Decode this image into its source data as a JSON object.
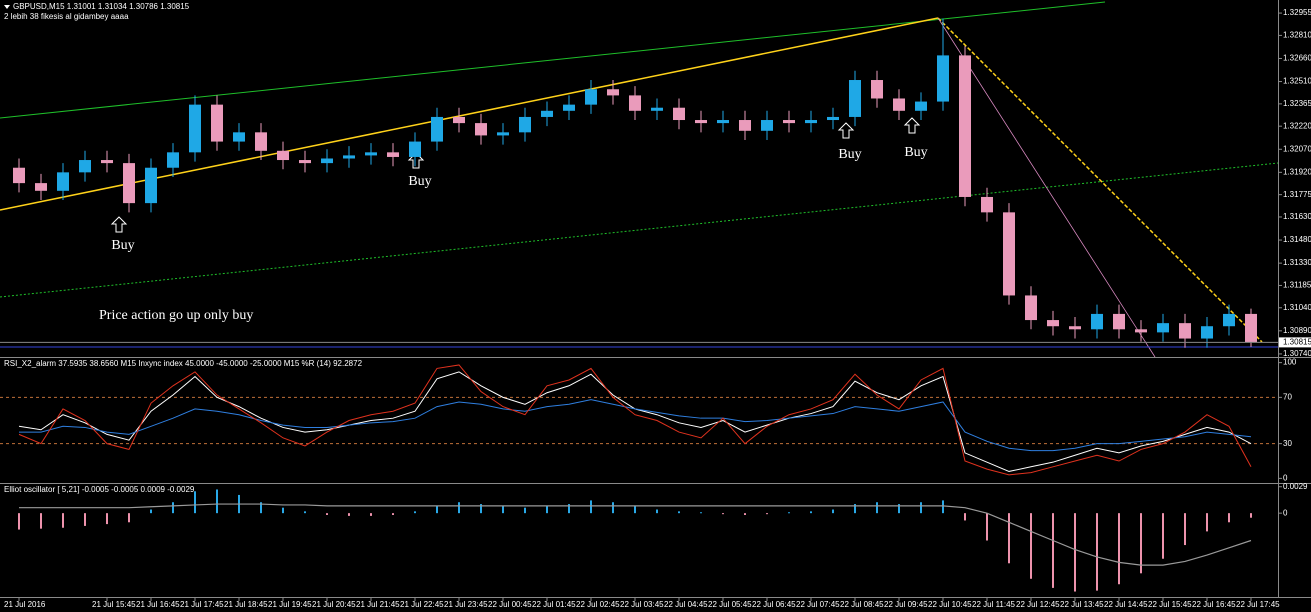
{
  "header": {
    "symbol_line": "GBPUSD,M15  1.31001 1.31034 1.30786 1.30815",
    "subtitle": "2 lebih 38 fikesis al gidambey aaaa"
  },
  "annotations": {
    "buy_labels": [
      "Buy",
      "Buy",
      "Buy",
      "Buy"
    ],
    "note": "Price action go up only buy"
  },
  "chart_data": [
    {
      "type": "candlestick",
      "categories": [
        "21 Jul 2016",
        null,
        null,
        null,
        "21 Jul 15:45",
        null,
        "21 Jul 16:45",
        null,
        "21 Jul 17:45",
        null,
        "21 Jul 18:45",
        null,
        "21 Jul 19:45",
        null,
        "21 Jul 20:45",
        null,
        "21 Jul 21:45",
        null,
        "21 Jul 22:45",
        null,
        "21 Jul 23:45",
        null,
        "22 Jul 00:45",
        null,
        "22 Jul 01:45",
        null,
        "22 Jul 02:45",
        null,
        "22 Jul 03:45",
        null,
        "22 Jul 04:45",
        null,
        "22 Jul 05:45",
        null,
        "22 Jul 06:45",
        null,
        "22 Jul 07:45",
        null,
        "22 Jul 08:45",
        null,
        "22 Jul 09:45",
        null,
        "22 Jul 10:45",
        null,
        "22 Jul 11:45",
        null,
        "22 Jul 12:45",
        null,
        "22 Jul 13:45",
        null,
        "22 Jul 14:45",
        null,
        "22 Jul 15:45",
        null,
        "22 Jul 16:45",
        null,
        "22 Jul 17:45"
      ],
      "open": [
        1.3195,
        1.3185,
        1.318,
        1.3192,
        1.32,
        1.3198,
        1.3172,
        1.3195,
        1.3205,
        1.3236,
        1.3212,
        1.3218,
        1.3206,
        1.32,
        1.3198,
        1.3201,
        1.3203,
        1.3205,
        1.3202,
        1.3212,
        1.3228,
        1.3224,
        1.3216,
        1.3218,
        1.3228,
        1.3232,
        1.3236,
        1.3246,
        1.3242,
        1.3232,
        1.3234,
        1.3226,
        1.3224,
        1.3226,
        1.3219,
        1.3226,
        1.3224,
        1.3226,
        1.3228,
        1.3252,
        1.324,
        1.3232,
        1.3238,
        1.3268,
        1.3176,
        1.3166,
        1.3112,
        1.3096,
        1.3092,
        1.309,
        1.31,
        1.309,
        1.3088,
        1.3094,
        1.3084,
        1.3092,
        1.31
      ],
      "high": [
        1.3201,
        1.3191,
        1.3198,
        1.3206,
        1.3206,
        1.3204,
        1.3201,
        1.3211,
        1.3242,
        1.3242,
        1.3224,
        1.3224,
        1.3212,
        1.3206,
        1.3207,
        1.3209,
        1.3211,
        1.3211,
        1.3218,
        1.3234,
        1.3234,
        1.323,
        1.3224,
        1.3234,
        1.3238,
        1.3242,
        1.3252,
        1.3252,
        1.3248,
        1.324,
        1.324,
        1.3232,
        1.3232,
        1.3232,
        1.3232,
        1.3232,
        1.3232,
        1.3234,
        1.3258,
        1.3258,
        1.3246,
        1.3244,
        1.3292,
        1.3274,
        1.3182,
        1.3172,
        1.3118,
        1.3102,
        1.3098,
        1.3106,
        1.3106,
        1.3096,
        1.31,
        1.31,
        1.3098,
        1.3106,
        1.31034
      ],
      "low": [
        1.3179,
        1.3174,
        1.3174,
        1.3186,
        1.3192,
        1.3166,
        1.3166,
        1.3189,
        1.3199,
        1.3206,
        1.3206,
        1.32,
        1.3194,
        1.3192,
        1.3192,
        1.3195,
        1.3197,
        1.3196,
        1.3196,
        1.3206,
        1.3218,
        1.321,
        1.321,
        1.3212,
        1.3222,
        1.3226,
        1.323,
        1.3236,
        1.3226,
        1.3226,
        1.322,
        1.3218,
        1.3218,
        1.3213,
        1.3213,
        1.3218,
        1.3218,
        1.322,
        1.3222,
        1.3234,
        1.3226,
        1.3226,
        1.3232,
        1.317,
        1.316,
        1.3106,
        1.309,
        1.3086,
        1.3084,
        1.3084,
        1.3084,
        1.3082,
        1.3082,
        1.3078,
        1.3078,
        1.3086,
        1.30786
      ],
      "close": [
        1.3185,
        1.318,
        1.3192,
        1.32,
        1.3198,
        1.3172,
        1.3195,
        1.3205,
        1.3236,
        1.3212,
        1.3218,
        1.3206,
        1.32,
        1.3198,
        1.3201,
        1.3203,
        1.3205,
        1.3202,
        1.3212,
        1.3228,
        1.3224,
        1.3216,
        1.3218,
        1.3228,
        1.3232,
        1.3236,
        1.3246,
        1.3242,
        1.3232,
        1.3234,
        1.3226,
        1.3224,
        1.3226,
        1.3219,
        1.3226,
        1.3224,
        1.3226,
        1.3228,
        1.3252,
        1.324,
        1.3232,
        1.3238,
        1.3268,
        1.3176,
        1.3166,
        1.3112,
        1.3096,
        1.3092,
        1.309,
        1.31,
        1.309,
        1.3088,
        1.3094,
        1.3084,
        1.3092,
        1.31,
        1.30815
      ],
      "up_color": "#1fa8e6",
      "down_color": "#ea9bbb",
      "last_price": 1.30815,
      "ylim": [
        1.3072,
        1.3304
      ],
      "yticks": [
        {
          "value": 1.32955,
          "label": "1.32955"
        },
        {
          "value": 1.3281,
          "label": "1.32810"
        },
        {
          "value": 1.3266,
          "label": "1.32660"
        },
        {
          "value": 1.3251,
          "label": "1.32510"
        },
        {
          "value": 1.32365,
          "label": "1.32365"
        },
        {
          "value": 1.3222,
          "label": "1.32220"
        },
        {
          "value": 1.3207,
          "label": "1.32070"
        },
        {
          "value": 1.3192,
          "label": "1.31920"
        },
        {
          "value": 1.31775,
          "label": "1.31775"
        },
        {
          "value": 1.3163,
          "label": "1.31630"
        },
        {
          "value": 1.3148,
          "label": "1.31480"
        },
        {
          "value": 1.3133,
          "label": "1.31330"
        },
        {
          "value": 1.31185,
          "label": "1.31185"
        },
        {
          "value": 1.3104,
          "label": "1.31040"
        },
        {
          "value": 1.3089,
          "label": "1.30890"
        },
        {
          "value": 1.3074,
          "label": "1.30740"
        }
      ]
    },
    {
      "type": "line",
      "title": "RSI_X2_alarm 37.5935 38.6560 M15 Inxync index 45.0000 -45.0000 -25.0000 M15 %R (14) 92.2872",
      "series": [
        {
          "color": "#ffffff",
          "values": [
            45,
            42,
            55,
            48,
            38,
            33,
            58,
            72,
            88,
            70,
            62,
            52,
            44,
            40,
            42,
            46,
            50,
            52,
            58,
            86,
            92,
            80,
            70,
            64,
            74,
            80,
            90,
            72,
            60,
            55,
            48,
            44,
            50,
            40,
            46,
            52,
            56,
            62,
            84,
            74,
            68,
            80,
            88,
            22,
            14,
            6,
            10,
            14,
            20,
            26,
            22,
            28,
            32,
            38,
            44,
            40,
            30
          ]
        },
        {
          "color": "#2f7fe0",
          "values": [
            40,
            40,
            45,
            44,
            40,
            38,
            45,
            52,
            60,
            58,
            55,
            50,
            46,
            44,
            44,
            46,
            48,
            49,
            52,
            62,
            66,
            64,
            60,
            58,
            62,
            64,
            68,
            64,
            60,
            57,
            54,
            52,
            52,
            49,
            50,
            52,
            54,
            56,
            62,
            60,
            58,
            62,
            66,
            40,
            32,
            26,
            24,
            24,
            26,
            30,
            30,
            32,
            34,
            36,
            40,
            38,
            36
          ]
        },
        {
          "color": "#e0321e",
          "values": [
            38,
            30,
            60,
            50,
            30,
            25,
            65,
            80,
            92,
            72,
            60,
            48,
            35,
            28,
            40,
            50,
            55,
            58,
            65,
            95,
            98,
            75,
            62,
            55,
            80,
            85,
            95,
            70,
            55,
            50,
            40,
            35,
            52,
            30,
            45,
            55,
            60,
            68,
            90,
            72,
            60,
            85,
            95,
            15,
            8,
            3,
            5,
            10,
            15,
            20,
            15,
            25,
            30,
            40,
            55,
            45,
            10
          ]
        }
      ],
      "ylim": [
        -4,
        104
      ],
      "yticks": [
        100,
        70,
        30,
        0
      ]
    },
    {
      "type": "histogram-line",
      "title": "Elliot oscillator [ 5,21] -0.0005 -0.0005 0.0009 -0.0029",
      "values": [
        -0.0018,
        -0.0017,
        -0.0016,
        -0.0014,
        -0.0012,
        -0.001,
        0.0004,
        0.0012,
        0.0024,
        0.0026,
        0.002,
        0.0012,
        0.0006,
        0.0002,
        -0.0002,
        -0.0003,
        -0.0003,
        -0.0002,
        0.0002,
        0.0008,
        0.0012,
        0.001,
        0.0008,
        0.0006,
        0.0008,
        0.001,
        0.0014,
        0.0012,
        0.0008,
        0.0004,
        0.0002,
        0.0001,
        -0.0001,
        -0.0002,
        -0.0001,
        0.0001,
        0.0002,
        0.0004,
        0.001,
        0.0012,
        0.001,
        0.0012,
        0.0014,
        -0.0008,
        -0.003,
        -0.0055,
        -0.0072,
        -0.0082,
        -0.0086,
        -0.0085,
        -0.0078,
        -0.0066,
        -0.005,
        -0.0035,
        -0.002,
        -0.001,
        -0.0005
      ],
      "signal": [
        0.0006,
        0.0006,
        0.0006,
        0.0006,
        0.0006,
        0.0006,
        0.0007,
        0.0008,
        0.0009,
        0.001,
        0.001,
        0.001,
        0.0009,
        0.0009,
        0.0008,
        0.0008,
        0.0008,
        0.0008,
        0.0008,
        0.0008,
        0.0008,
        0.0008,
        0.0008,
        0.0008,
        0.0008,
        0.0008,
        0.0008,
        0.0008,
        0.0008,
        0.0008,
        0.0008,
        0.0008,
        0.0008,
        0.0008,
        0.0008,
        0.0008,
        0.0008,
        0.0008,
        0.0008,
        0.0008,
        0.0008,
        0.0008,
        0.0008,
        0.0006,
        0.0,
        -0.001,
        -0.002,
        -0.003,
        -0.004,
        -0.0048,
        -0.0054,
        -0.0057,
        -0.0057,
        -0.0053,
        -0.0046,
        -0.0038,
        -0.003
      ],
      "pos_color": "#29a9e8",
      "neg_color": "#ee93ad",
      "signal_color": "#9a9a9a",
      "ylim": [
        -0.0092,
        0.0032
      ],
      "yticks": [
        {
          "value": 0.0029,
          "label": "0.0029"
        },
        0
      ]
    }
  ]
}
